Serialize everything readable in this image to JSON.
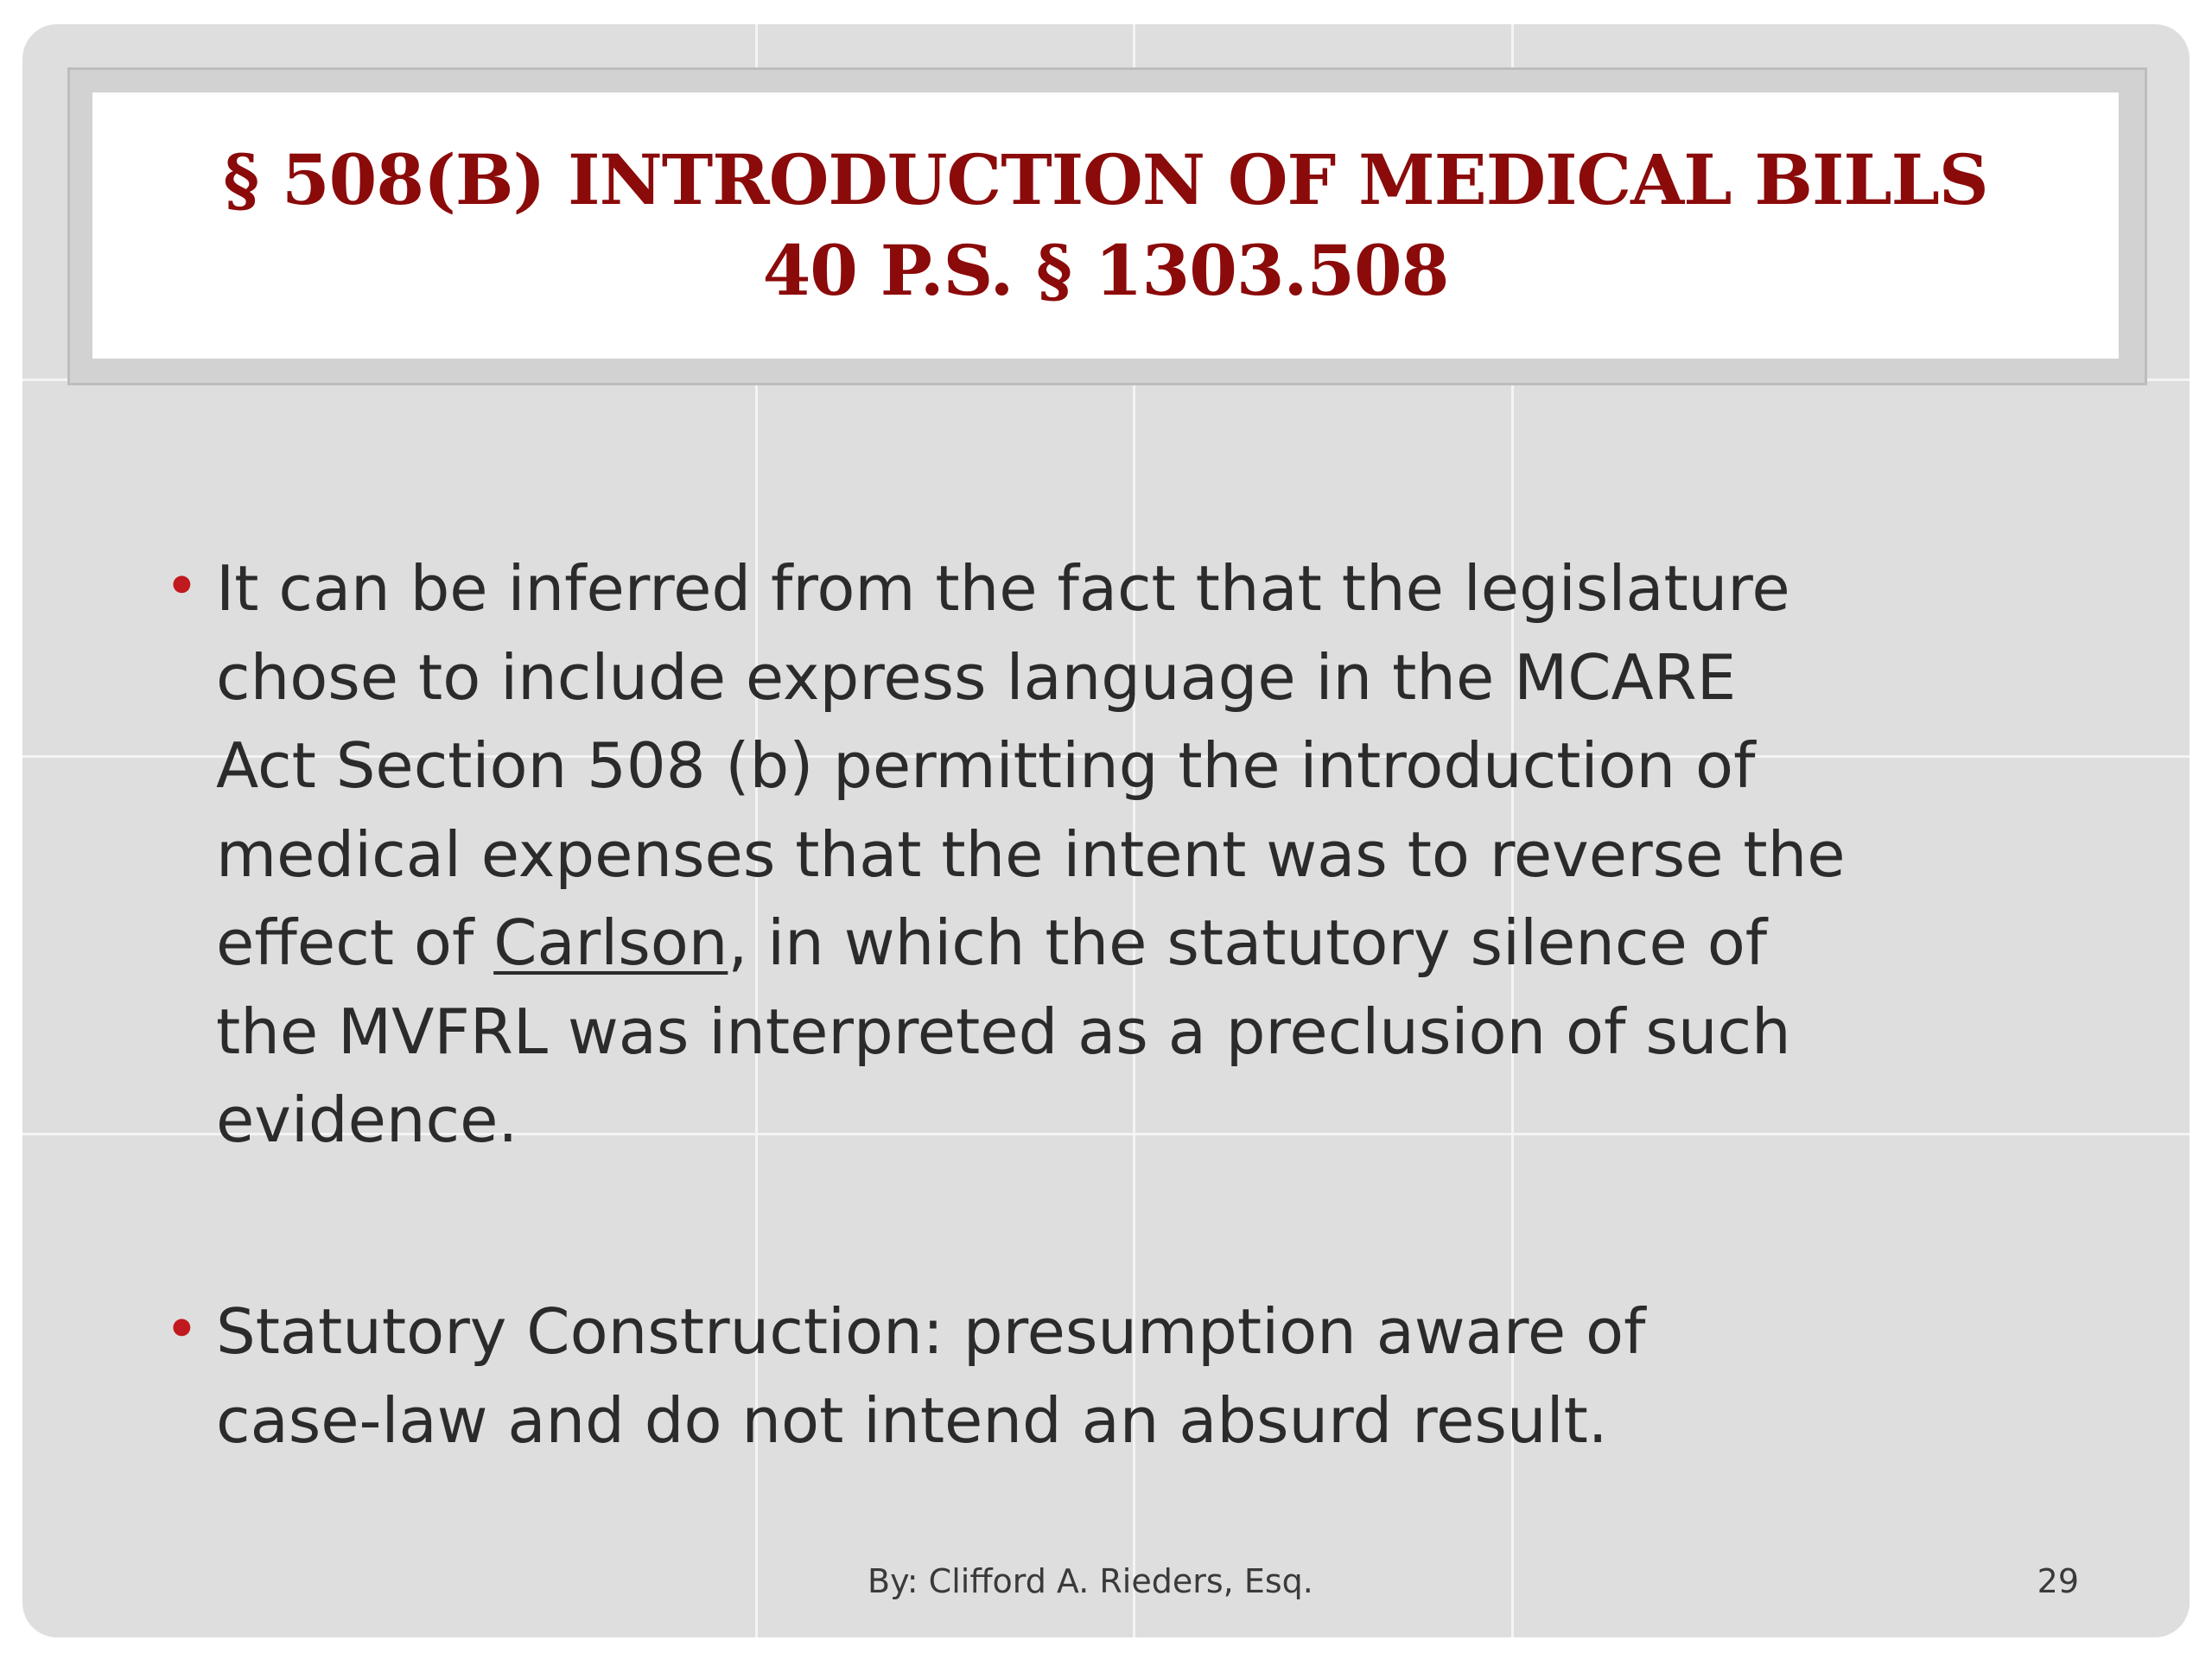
{
  "slide": {
    "title": {
      "line1": "§ 508(B) INTRODUCTION OF MEDICAL BILLS",
      "line2": "40 P.S. § 1303.508"
    },
    "bullets": [
      {
        "lines": [
          "It can be inferred from the fact that the legislature",
          "chose to include express language in the MCARE",
          "Act Section 508 (b) permitting the introduction of",
          "medical expenses that the intent was to reverse the"
        ],
        "line5_before": "effect of ",
        "line5_underlined": "Carlson",
        "line5_after": ", in which the statutory silence of",
        "lines_end": [
          "the MVFRL was interpreted as a preclusion of such",
          "evidence."
        ]
      },
      {
        "lines": [
          "Statutory Construction:  presumption aware of",
          "case-law and do not intend an absurd result."
        ]
      }
    ],
    "footer": {
      "author": "By:  Clifford A. Rieders, Esq.",
      "page_number": "29"
    },
    "colors": {
      "title": "#8b0a0a",
      "bullet": "#c0191e",
      "body_text": "#2b2b2b",
      "background": "#dedede"
    }
  }
}
